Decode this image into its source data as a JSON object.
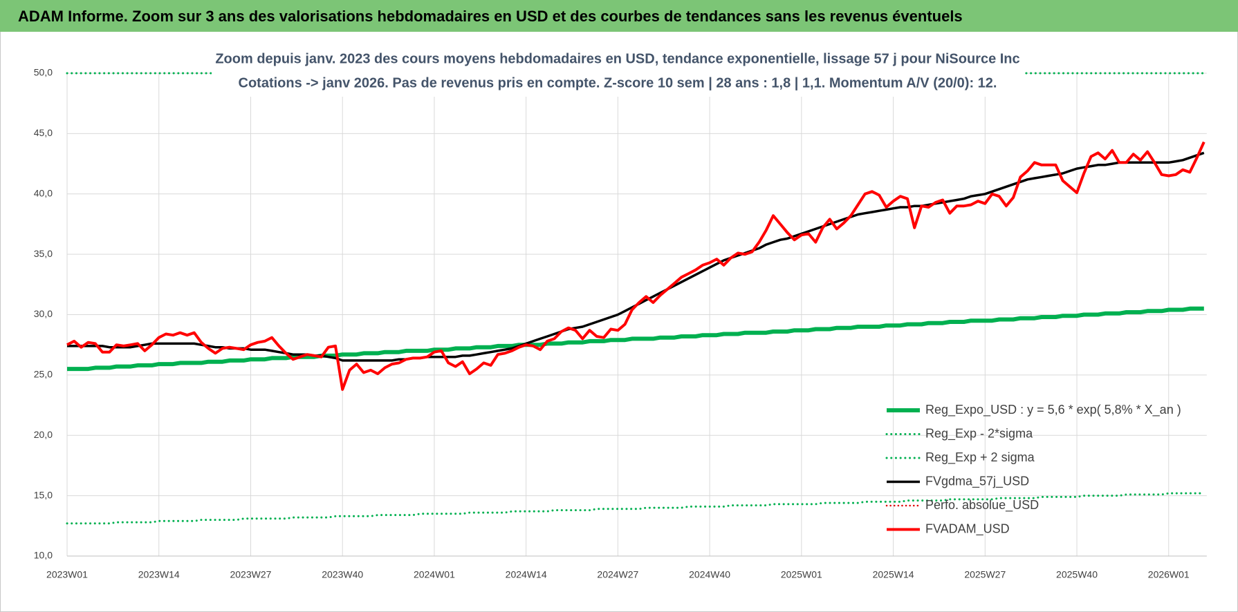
{
  "header": {
    "title": "ADAM Informe. Zoom sur 3 ans des valorisations hebdomadaires en USD et des courbes de tendances sans les revenus éventuels"
  },
  "chart_data": {
    "type": "line",
    "title": [
      "Zoom depuis janv. 2023 des cours moyens hebdomadaires en USD, tendance exponentielle, lissage 57 j pour NiSource Inc",
      "Cotations -> janv 2026. Pas de revenus pris en compte. Z-score 10 sem  | 28 ans : 1,8 | 1,1. Momentum A/V (20/0): 12."
    ],
    "categories": [
      "2023W01",
      null,
      null,
      null,
      null,
      null,
      null,
      null,
      null,
      null,
      null,
      null,
      null,
      "2023W14",
      null,
      null,
      null,
      null,
      null,
      null,
      null,
      null,
      null,
      null,
      null,
      null,
      "2023W27",
      null,
      null,
      null,
      null,
      null,
      null,
      null,
      null,
      null,
      null,
      null,
      null,
      "2023W40",
      null,
      null,
      null,
      null,
      null,
      null,
      null,
      null,
      null,
      null,
      null,
      null,
      "2024W01",
      null,
      null,
      null,
      null,
      null,
      null,
      null,
      null,
      null,
      null,
      null,
      null,
      "2024W14",
      null,
      null,
      null,
      null,
      null,
      null,
      null,
      null,
      null,
      null,
      null,
      null,
      "2024W27",
      null,
      null,
      null,
      null,
      null,
      null,
      null,
      null,
      null,
      null,
      null,
      null,
      "2024W40",
      null,
      null,
      null,
      null,
      null,
      null,
      null,
      null,
      null,
      null,
      null,
      null,
      "2025W01",
      null,
      null,
      null,
      null,
      null,
      null,
      null,
      null,
      null,
      null,
      null,
      null,
      "2025W14",
      null,
      null,
      null,
      null,
      null,
      null,
      null,
      null,
      null,
      null,
      null,
      null,
      "2025W27",
      null,
      null,
      null,
      null,
      null,
      null,
      null,
      null,
      null,
      null,
      null,
      null,
      "2025W40",
      null,
      null,
      null,
      null,
      null,
      null,
      null,
      null,
      null,
      null,
      null,
      null,
      "2026W01",
      null,
      null,
      null,
      null,
      null
    ],
    "ylim": [
      10,
      50
    ],
    "yticks": [
      {
        "value": 10,
        "label": "10,0"
      },
      {
        "value": 15,
        "label": "15,0"
      },
      {
        "value": 20,
        "label": "20,0"
      },
      {
        "value": 25,
        "label": "25,0"
      },
      {
        "value": 30,
        "label": "30,0"
      },
      {
        "value": 35,
        "label": "35,0"
      },
      {
        "value": 40,
        "label": "40,0"
      },
      {
        "value": 45,
        "label": "45,0"
      },
      {
        "value": 50,
        "label": "50,0"
      }
    ],
    "grid": true,
    "legend": "lower-right",
    "series": [
      {
        "name": "Reg_Expo_USD : y = 5,6 * exp( 5,8% *  X_an )",
        "color": "#00b050",
        "line_style": "solid",
        "line_width": 6,
        "values": [
          25.5,
          25.5,
          25.5,
          25.5,
          25.6,
          25.6,
          25.6,
          25.7,
          25.7,
          25.7,
          25.8,
          25.8,
          25.8,
          25.9,
          25.9,
          25.9,
          26.0,
          26.0,
          26.0,
          26.0,
          26.1,
          26.1,
          26.1,
          26.2,
          26.2,
          26.2,
          26.3,
          26.3,
          26.3,
          26.4,
          26.4,
          26.4,
          26.5,
          26.5,
          26.5,
          26.5,
          26.6,
          26.6,
          26.6,
          26.7,
          26.7,
          26.7,
          26.8,
          26.8,
          26.8,
          26.9,
          26.9,
          26.9,
          27.0,
          27.0,
          27.0,
          27.0,
          27.1,
          27.1,
          27.1,
          27.2,
          27.2,
          27.2,
          27.3,
          27.3,
          27.3,
          27.4,
          27.4,
          27.4,
          27.5,
          27.5,
          27.5,
          27.5,
          27.6,
          27.6,
          27.6,
          27.7,
          27.7,
          27.7,
          27.8,
          27.8,
          27.8,
          27.9,
          27.9,
          27.9,
          28.0,
          28.0,
          28.0,
          28.0,
          28.1,
          28.1,
          28.1,
          28.2,
          28.2,
          28.2,
          28.3,
          28.3,
          28.3,
          28.4,
          28.4,
          28.4,
          28.5,
          28.5,
          28.5,
          28.5,
          28.6,
          28.6,
          28.6,
          28.7,
          28.7,
          28.7,
          28.8,
          28.8,
          28.8,
          28.9,
          28.9,
          28.9,
          29.0,
          29.0,
          29.0,
          29.0,
          29.1,
          29.1,
          29.1,
          29.2,
          29.2,
          29.2,
          29.3,
          29.3,
          29.3,
          29.4,
          29.4,
          29.4,
          29.5,
          29.5,
          29.5,
          29.5,
          29.6,
          29.6,
          29.6,
          29.7,
          29.7,
          29.7,
          29.8,
          29.8,
          29.8,
          29.9,
          29.9,
          29.9,
          30.0,
          30.0,
          30.0,
          30.1,
          30.1,
          30.1,
          30.2,
          30.2,
          30.2,
          30.3,
          30.3,
          30.3,
          30.4,
          30.4,
          30.4,
          30.5,
          30.5,
          30.5
        ]
      },
      {
        "name": "Reg_Exp - 2*sigma",
        "color": "#00b050",
        "line_style": "dotted",
        "line_width": 3,
        "values": [
          12.7,
          12.7,
          12.7,
          12.7,
          12.7,
          12.7,
          12.7,
          12.8,
          12.8,
          12.8,
          12.8,
          12.8,
          12.8,
          12.9,
          12.9,
          12.9,
          12.9,
          12.9,
          12.9,
          13.0,
          13.0,
          13.0,
          13.0,
          13.0,
          13.0,
          13.1,
          13.1,
          13.1,
          13.1,
          13.1,
          13.1,
          13.1,
          13.2,
          13.2,
          13.2,
          13.2,
          13.2,
          13.2,
          13.3,
          13.3,
          13.3,
          13.3,
          13.3,
          13.3,
          13.4,
          13.4,
          13.4,
          13.4,
          13.4,
          13.4,
          13.5,
          13.5,
          13.5,
          13.5,
          13.5,
          13.5,
          13.5,
          13.6,
          13.6,
          13.6,
          13.6,
          13.6,
          13.6,
          13.7,
          13.7,
          13.7,
          13.7,
          13.7,
          13.7,
          13.8,
          13.8,
          13.8,
          13.8,
          13.8,
          13.8,
          13.9,
          13.9,
          13.9,
          13.9,
          13.9,
          13.9,
          13.9,
          14.0,
          14.0,
          14.0,
          14.0,
          14.0,
          14.0,
          14.1,
          14.1,
          14.1,
          14.1,
          14.1,
          14.1,
          14.2,
          14.2,
          14.2,
          14.2,
          14.2,
          14.2,
          14.3,
          14.3,
          14.3,
          14.3,
          14.3,
          14.3,
          14.3,
          14.4,
          14.4,
          14.4,
          14.4,
          14.4,
          14.4,
          14.5,
          14.5,
          14.5,
          14.5,
          14.5,
          14.5,
          14.6,
          14.6,
          14.6,
          14.6,
          14.6,
          14.6,
          14.7,
          14.7,
          14.7,
          14.7,
          14.7,
          14.7,
          14.7,
          14.8,
          14.8,
          14.8,
          14.8,
          14.8,
          14.8,
          14.9,
          14.9,
          14.9,
          14.9,
          14.9,
          14.9,
          15.0,
          15.0,
          15.0,
          15.0,
          15.0,
          15.0,
          15.1,
          15.1,
          15.1,
          15.1,
          15.1,
          15.1,
          15.2,
          15.2,
          15.2,
          15.2,
          15.2,
          15.2
        ]
      },
      {
        "name": "Reg_Exp + 2 sigma",
        "color": "#00b050",
        "line_style": "dotted",
        "line_width": 3,
        "values": [
          50,
          50,
          50,
          50,
          50,
          50,
          50,
          50,
          50,
          50,
          50,
          50,
          50,
          50,
          50,
          50,
          50,
          50,
          50,
          50,
          50,
          50,
          50,
          50,
          50,
          50,
          50,
          50,
          50,
          50,
          50,
          50,
          50,
          50,
          50,
          50,
          50,
          50,
          50,
          50,
          50,
          50,
          50,
          50,
          50,
          50,
          50,
          50,
          50,
          50,
          50,
          50,
          50,
          50,
          50,
          50,
          50,
          50,
          50,
          50,
          50,
          50,
          50,
          50,
          50,
          50,
          50,
          50,
          50,
          50,
          50,
          50,
          50,
          50,
          50,
          50,
          50,
          50,
          50,
          50,
          50,
          50,
          50,
          50,
          50,
          50,
          50,
          50,
          50,
          50,
          50,
          50,
          50,
          50,
          50,
          50,
          50,
          50,
          50,
          50,
          50,
          50,
          50,
          50,
          50,
          50,
          50,
          50,
          50,
          50,
          50,
          50,
          50,
          50,
          50,
          50,
          50,
          50,
          50,
          50,
          50,
          50,
          50,
          50,
          50,
          50,
          50,
          50,
          50,
          50,
          50,
          50,
          50,
          50,
          50,
          50,
          50,
          50,
          50,
          50,
          50,
          50,
          50,
          50,
          50,
          50,
          50,
          50,
          50,
          50,
          50,
          50,
          50,
          50,
          50,
          50,
          50,
          50,
          50,
          50,
          50,
          50
        ]
      },
      {
        "name": "FVgdma_57j_USD",
        "color": "#000000",
        "line_style": "solid",
        "line_width": 3.5,
        "values": [
          27.4,
          27.4,
          27.4,
          27.4,
          27.4,
          27.4,
          27.3,
          27.3,
          27.3,
          27.3,
          27.4,
          27.5,
          27.6,
          27.6,
          27.6,
          27.6,
          27.6,
          27.6,
          27.6,
          27.5,
          27.4,
          27.3,
          27.3,
          27.2,
          27.2,
          27.2,
          27.1,
          27.1,
          27.1,
          27.0,
          26.9,
          26.8,
          26.7,
          26.7,
          26.7,
          26.6,
          26.6,
          26.5,
          26.4,
          26.2,
          26.2,
          26.2,
          26.2,
          26.2,
          26.2,
          26.2,
          26.2,
          26.3,
          26.3,
          26.4,
          26.4,
          26.5,
          26.5,
          26.5,
          26.5,
          26.5,
          26.6,
          26.6,
          26.7,
          26.8,
          26.9,
          27.0,
          27.1,
          27.2,
          27.4,
          27.6,
          27.8,
          28.0,
          28.2,
          28.4,
          28.6,
          28.8,
          28.9,
          29.0,
          29.2,
          29.4,
          29.6,
          29.8,
          30.0,
          30.3,
          30.6,
          30.9,
          31.2,
          31.5,
          31.8,
          32.1,
          32.4,
          32.7,
          33.0,
          33.3,
          33.6,
          33.9,
          34.2,
          34.5,
          34.7,
          34.9,
          35.1,
          35.3,
          35.5,
          35.8,
          36.0,
          36.2,
          36.3,
          36.5,
          36.7,
          36.9,
          37.1,
          37.3,
          37.5,
          37.7,
          37.9,
          38.1,
          38.3,
          38.4,
          38.5,
          38.6,
          38.7,
          38.8,
          38.9,
          38.9,
          39.0,
          39.0,
          39.1,
          39.2,
          39.3,
          39.4,
          39.5,
          39.6,
          39.8,
          39.9,
          40.0,
          40.2,
          40.4,
          40.6,
          40.8,
          41.0,
          41.2,
          41.3,
          41.4,
          41.5,
          41.6,
          41.7,
          41.9,
          42.1,
          42.2,
          42.3,
          42.4,
          42.4,
          42.5,
          42.6,
          42.6,
          42.6,
          42.6,
          42.6,
          42.6,
          42.6,
          42.6,
          42.7,
          42.8,
          43.0,
          43.2,
          43.4
        ]
      },
      {
        "name": "Perfo. absolue_USD",
        "color": "#e00000",
        "line_style": "dotted",
        "line_width": 2.5,
        "values": [
          null,
          null,
          null,
          null,
          null,
          null,
          null,
          null,
          null,
          null,
          null,
          null,
          null,
          null,
          null,
          null,
          null,
          null,
          null,
          null,
          null,
          null,
          null,
          null,
          null,
          null,
          null,
          null,
          null,
          null,
          null,
          null,
          null,
          null,
          null,
          null,
          null,
          null,
          null,
          null,
          null,
          null,
          null,
          null,
          null,
          null,
          null,
          null,
          null,
          null,
          null,
          null,
          null,
          null,
          null,
          null,
          null,
          null,
          null,
          null,
          null,
          null,
          null,
          null,
          null,
          null,
          null,
          null,
          null,
          null,
          null,
          null,
          null,
          null,
          null,
          null,
          null,
          null,
          null,
          null,
          null,
          null,
          null,
          null,
          null,
          null,
          null,
          null,
          null,
          null,
          null,
          null,
          null,
          null,
          null,
          null,
          null,
          null,
          null,
          null,
          null,
          null,
          null,
          null,
          null,
          null,
          null,
          null,
          null,
          null,
          null,
          null,
          null,
          null,
          null,
          null,
          null,
          null,
          null,
          null,
          null,
          null,
          null,
          null,
          null,
          null,
          null,
          null,
          null,
          null,
          null,
          null,
          null,
          null,
          null,
          null,
          null,
          null,
          null,
          null,
          null,
          null,
          null,
          null,
          null,
          null,
          null,
          null,
          null,
          null,
          null,
          null,
          null,
          null,
          null,
          null,
          null,
          null,
          null,
          null,
          null,
          null
        ]
      },
      {
        "name": "FVADAM_USD",
        "color": "#ff0000",
        "line_style": "solid",
        "line_width": 4,
        "values": [
          27.5,
          27.8,
          27.3,
          27.7,
          27.6,
          26.9,
          26.9,
          27.5,
          27.4,
          27.5,
          27.6,
          27.0,
          27.5,
          28.1,
          28.4,
          28.3,
          28.5,
          28.3,
          28.5,
          27.7,
          27.2,
          26.8,
          27.2,
          27.3,
          27.2,
          27.1,
          27.5,
          27.7,
          27.8,
          28.1,
          27.4,
          26.8,
          26.3,
          26.5,
          26.7,
          26.6,
          26.5,
          27.3,
          27.4,
          23.8,
          25.4,
          25.9,
          25.2,
          25.4,
          25.1,
          25.6,
          25.9,
          26.0,
          26.3,
          26.4,
          26.4,
          26.5,
          26.9,
          27.0,
          26.0,
          25.7,
          26.1,
          25.1,
          25.5,
          26.0,
          25.8,
          26.7,
          26.8,
          27.0,
          27.3,
          27.5,
          27.4,
          27.1,
          27.8,
          28.0,
          28.6,
          28.9,
          28.7,
          28.0,
          28.7,
          28.2,
          28.1,
          28.8,
          28.7,
          29.2,
          30.4,
          31.0,
          31.5,
          31.0,
          31.6,
          32.1,
          32.6,
          33.1,
          33.4,
          33.7,
          34.1,
          34.3,
          34.6,
          34.1,
          34.7,
          35.1,
          35.0,
          35.2,
          36.0,
          37.0,
          38.2,
          37.5,
          36.8,
          36.2,
          36.6,
          36.7,
          36.0,
          37.2,
          37.9,
          37.1,
          37.6,
          38.2,
          39.1,
          40.0,
          40.2,
          39.9,
          38.9,
          39.4,
          39.8,
          39.6,
          37.2,
          39.0,
          38.9,
          39.3,
          39.5,
          38.4,
          39.0,
          39.0,
          39.1,
          39.4,
          39.2,
          40.0,
          39.8,
          39.0,
          39.7,
          41.4,
          41.9,
          42.6,
          42.4,
          42.4,
          42.4,
          41.1,
          40.6,
          40.1,
          41.7,
          43.1,
          43.4,
          42.9,
          43.6,
          42.6,
          42.6,
          43.3,
          42.8,
          43.5,
          42.6,
          41.6,
          41.5,
          41.6,
          42.0,
          41.8,
          43.0,
          44.3
        ]
      }
    ]
  }
}
